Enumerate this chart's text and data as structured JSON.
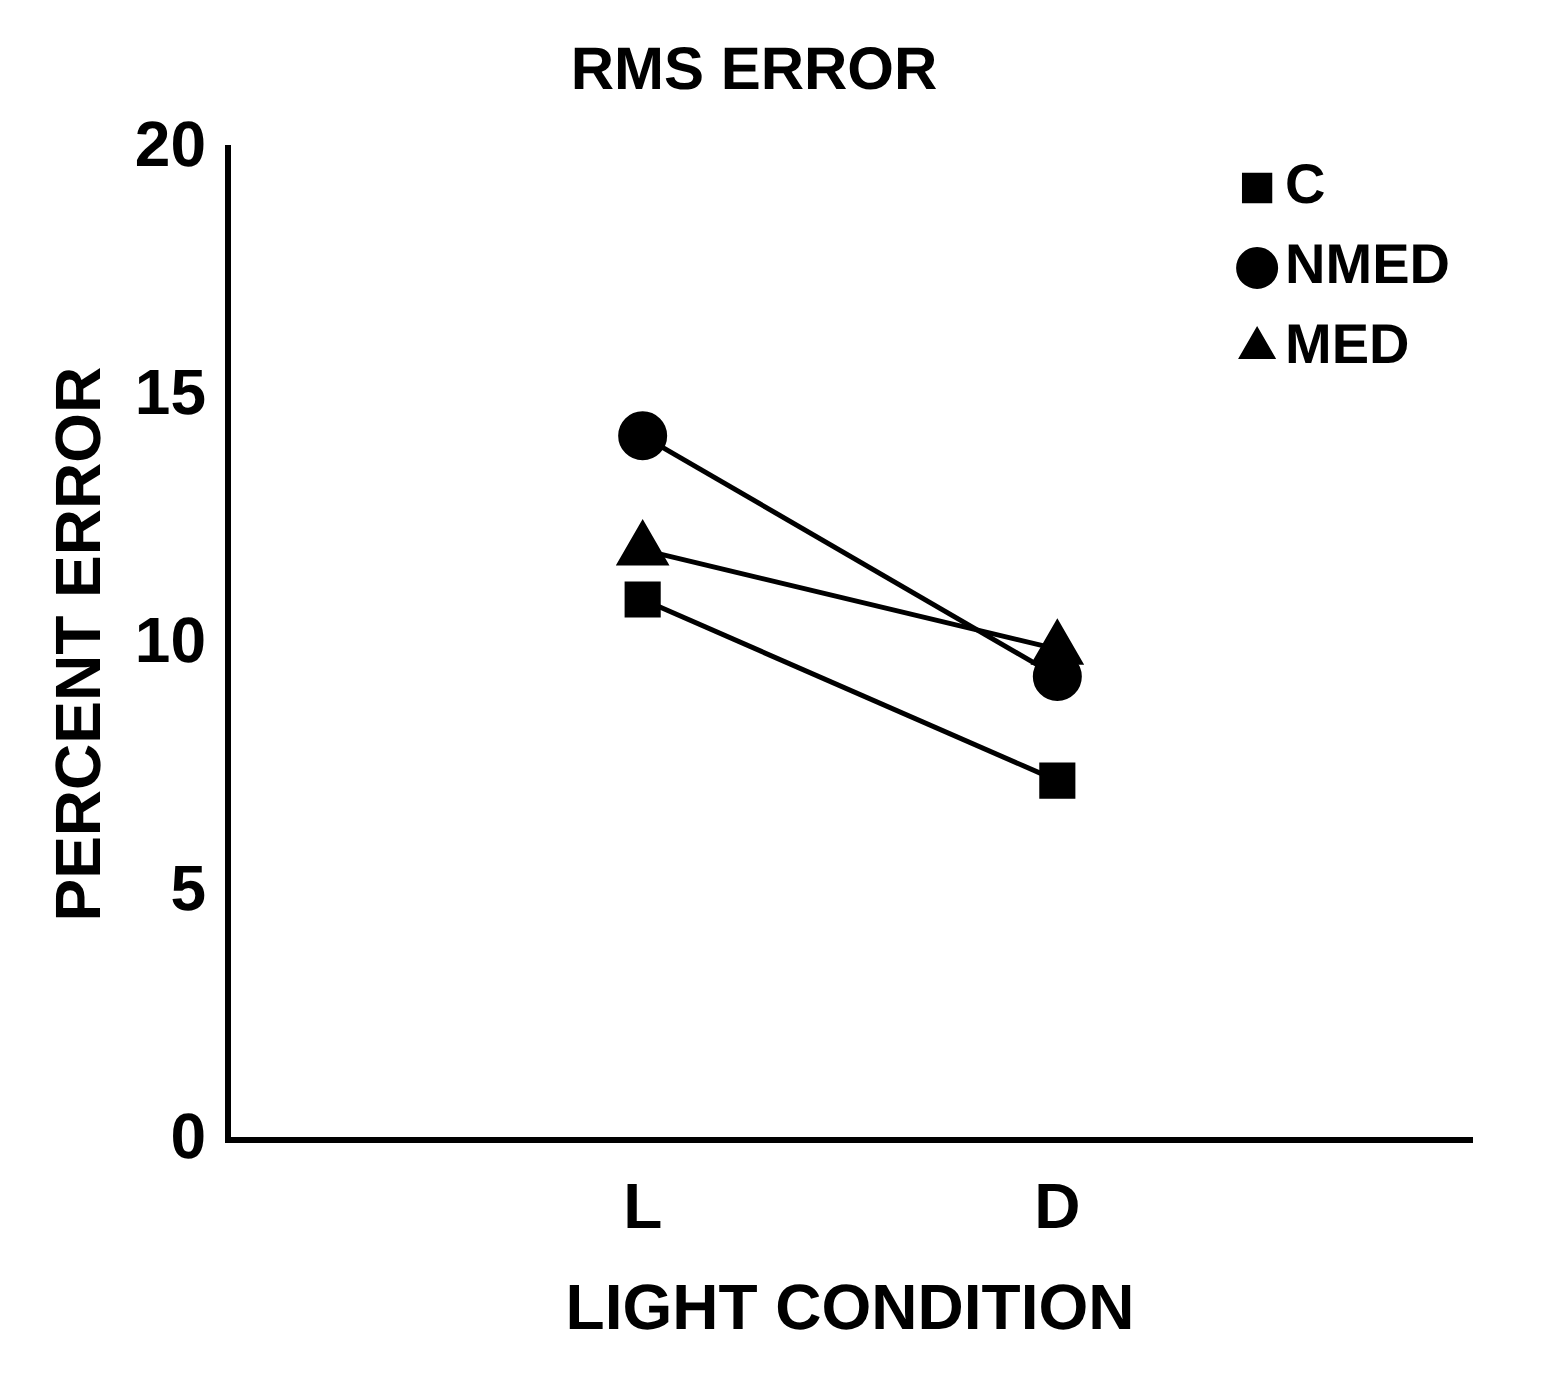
{
  "chart_data": {
    "type": "line",
    "title": "RMS ERROR",
    "xlabel": "LIGHT CONDITION",
    "ylabel": "PERCENT ERROR",
    "categories": [
      null,
      "L",
      "D",
      null
    ],
    "series": [
      {
        "name": "C",
        "color": "#000000",
        "marker": "square",
        "values": [
          null,
          10.9,
          7.25,
          null
        ]
      },
      {
        "name": "NMED",
        "color": "#000000",
        "marker": "circle",
        "values": [
          null,
          14.2,
          9.35,
          null
        ]
      },
      {
        "name": "MED",
        "color": "#000000",
        "marker": "triangle",
        "values": [
          null,
          11.9,
          9.9,
          null
        ]
      }
    ],
    "ylim": [
      0,
      20
    ],
    "yticks": [
      0,
      5,
      10,
      15,
      20
    ],
    "grid": false,
    "legend": "top right",
    "line_style": "solid"
  }
}
